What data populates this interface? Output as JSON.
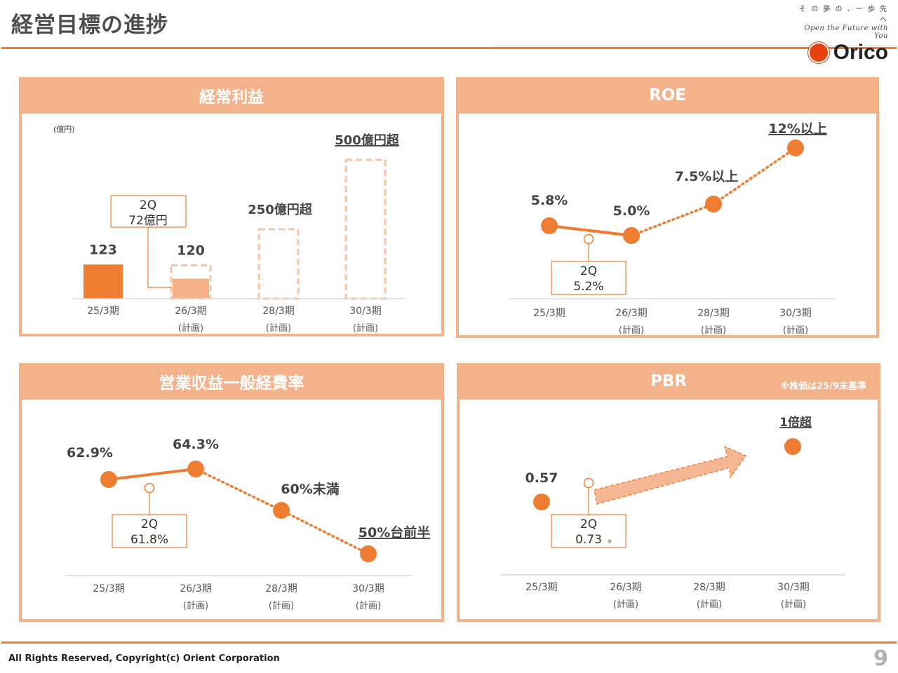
{
  "header": {
    "title": "経営目標の進捗",
    "brand_tagline": "そ の 夢 の 、一 歩 先 へ",
    "brand_subtitle": "Open the Future with You",
    "brand_name": "Orico"
  },
  "footer": {
    "copyright": "All Rights Reserved, Copyright(c) Orient Corporation",
    "page_number": "9"
  },
  "colors": {
    "accent": "#ee7d32",
    "panel_header": "#f3b28a",
    "light_fill": "#f6b088",
    "dashed": "#f4c4a4"
  },
  "chart_data": [
    {
      "type": "bar",
      "title": "経常利益",
      "unit_label": "(億円)",
      "categories": [
        "25/3期",
        "26/3期",
        "28/3期",
        "30/3期"
      ],
      "category_sublabels": [
        "",
        "(計画)",
        "(計画)",
        "(計画)"
      ],
      "values": [
        123,
        120,
        250,
        500
      ],
      "value_labels": [
        "123",
        "120",
        "250億円超",
        "500億円超"
      ],
      "status": [
        "actual",
        "plan",
        "plan",
        "plan"
      ],
      "interim": {
        "category": "26/3期",
        "value": 72,
        "label_line1": "2Q",
        "label_line2": "72億円"
      },
      "ylim": [
        0,
        500
      ]
    },
    {
      "type": "line",
      "title": "ROE",
      "categories": [
        "25/3期",
        "26/3期",
        "28/3期",
        "30/3期"
      ],
      "category_sublabels": [
        "",
        "(計画)",
        "(計画)",
        "(計画)"
      ],
      "values": [
        5.8,
        5.0,
        7.5,
        12.0
      ],
      "value_labels": [
        "5.8%",
        "5.0%",
        "7.5%以上",
        "12%以上"
      ],
      "interim": {
        "value": 5.2,
        "label_line1": "2Q",
        "label_line2": "5.2%"
      },
      "ylim": [
        3.0,
        12.0
      ]
    },
    {
      "type": "line",
      "title": "営業収益一般経費率",
      "categories": [
        "25/3期",
        "26/3期",
        "28/3期",
        "30/3期"
      ],
      "category_sublabels": [
        "",
        "(計画)",
        "(計画)",
        "(計画)"
      ],
      "values": [
        62.9,
        64.3,
        60.0,
        50.0
      ],
      "value_labels": [
        "62.9%",
        "64.3%",
        "60%未満",
        "50%台前半"
      ],
      "interim": {
        "value": 61.8,
        "label_line1": "2Q",
        "label_line2": "61.8%"
      },
      "ylim": [
        50.0,
        64.3
      ]
    },
    {
      "type": "scatter",
      "title": "PBR",
      "note": "※株価は25/9末基準",
      "categories": [
        "25/3期",
        "26/3期",
        "28/3期",
        "30/3期"
      ],
      "category_sublabels": [
        "",
        "(計画)",
        "(計画)",
        "(計画)"
      ],
      "values": [
        0.57,
        null,
        null,
        1.0
      ],
      "value_labels": [
        "0.57",
        "",
        "",
        "1倍超"
      ],
      "interim": {
        "value": 0.73,
        "label_line1": "2Q",
        "label_line2": "0.73",
        "mark": "※"
      },
      "ylim": [
        0.5,
        1.0
      ]
    }
  ]
}
